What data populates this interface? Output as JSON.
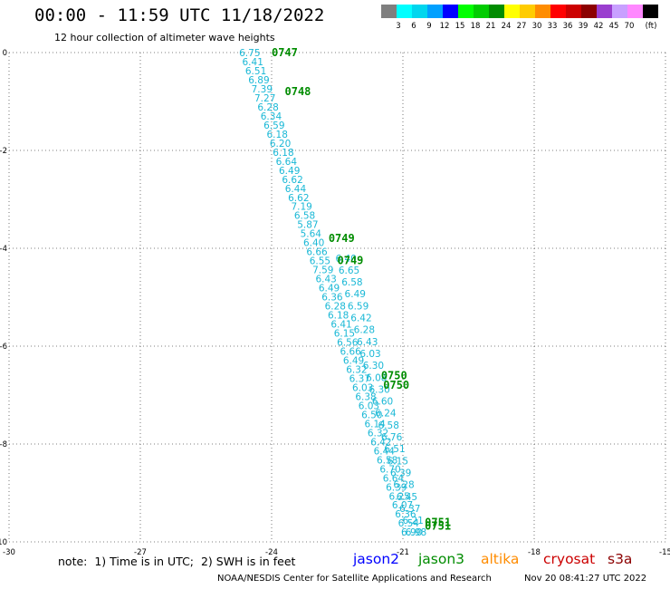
{
  "header": {
    "title": "00:00 - 11:59 UTC 11/18/2022",
    "subtitle": "12 hour collection of altimeter wave heights"
  },
  "colorbar": {
    "unit_label": "(ft)",
    "swatches": [
      {
        "label": "",
        "color": "#7f7f7f"
      },
      {
        "label": "3",
        "color": "#00ffff"
      },
      {
        "label": "6",
        "color": "#00d6ee"
      },
      {
        "label": "9",
        "color": "#00a0ff"
      },
      {
        "label": "12",
        "color": "#0000ff"
      },
      {
        "label": "15",
        "color": "#00ff00"
      },
      {
        "label": "18",
        "color": "#00cc00"
      },
      {
        "label": "21",
        "color": "#008c00"
      },
      {
        "label": "24",
        "color": "#ffff00"
      },
      {
        "label": "27",
        "color": "#ffcc00"
      },
      {
        "label": "30",
        "color": "#ff8c00"
      },
      {
        "label": "33",
        "color": "#ff0000"
      },
      {
        "label": "36",
        "color": "#cc0000"
      },
      {
        "label": "39",
        "color": "#8c0000"
      },
      {
        "label": "42",
        "color": "#9a3ecf"
      },
      {
        "label": "45",
        "color": "#c8a0ff"
      },
      {
        "label": "70",
        "color": "#ff88ff"
      },
      {
        "label": "",
        "color": "#000000"
      }
    ]
  },
  "chart_data": {
    "type": "scatter",
    "title": "00:00 - 11:59 UTC 11/18/2022",
    "subtitle": "12 hour collection of altimeter wave heights",
    "xlim": [
      -30,
      -15
    ],
    "ylim": [
      -10,
      0
    ],
    "x_ticks": [
      "-30",
      "-27",
      "-24",
      "-21",
      "-18",
      "-15"
    ],
    "y_ticks": [
      "0",
      "-2",
      "-4",
      "-6",
      "-8",
      "-10"
    ],
    "grid": true,
    "point_color": "#1ab8d6",
    "time_color": "#008c00",
    "track_a": {
      "lon_start": -24.5,
      "lat_start": -0.0,
      "lon_end": -20.8,
      "lat_end": -9.8,
      "values": [
        "6.75",
        "6.41",
        "6.51",
        "6.89",
        "7.39",
        "7.27",
        "6.28",
        "6.34",
        "6.59",
        "6.18",
        "6.20",
        "6.18",
        "6.64",
        "6.49",
        "6.62",
        "6.44",
        "6.62",
        "7.19",
        "6.58",
        "5.87",
        "5.64",
        "6.40",
        "6.66",
        "6.55",
        "7.59",
        "6.43",
        "6.49",
        "6.36",
        "6.28",
        "6.18",
        "6.41",
        "6.15",
        "6.56",
        "6.66",
        "6.49",
        "6.32",
        "6.37",
        "6.03",
        "6.38",
        "6.03",
        "6.50",
        "6.14",
        "6.32",
        "6.42",
        "6.44",
        "6.58",
        "6.70",
        "6.64",
        "6.39",
        "6.25",
        "6.07",
        "6.36",
        "6.54",
        "6.90"
      ]
    },
    "track_b": {
      "lon_start": -22.3,
      "lat_start": -4.2,
      "lon_end": -20.7,
      "lat_end": -9.8,
      "values": [
        "6.40",
        "6.65",
        "6.58",
        "6.49",
        "6.59",
        "6.42",
        "6.28",
        "6.43",
        "6.03",
        "6.30",
        "6.08",
        "6.30",
        "6.60",
        "6.24",
        "6.58",
        "6.76",
        "6.51",
        "6.15",
        "6.39",
        "6.28",
        "6.45",
        "6.37",
        "6.21",
        "6.98"
      ]
    },
    "time_labels": [
      {
        "text": "0747",
        "lon": -24.0,
        "lat": 0.0
      },
      {
        "text": "0748",
        "lon": -23.7,
        "lat": -0.8
      },
      {
        "text": "0749",
        "lon": -22.7,
        "lat": -3.8
      },
      {
        "text": "0749",
        "lon": -22.5,
        "lat": -4.25
      },
      {
        "text": "0750",
        "lon": -21.5,
        "lat": -6.6
      },
      {
        "text": "0750",
        "lon": -21.45,
        "lat": -6.8
      },
      {
        "text": "0751",
        "lon": -20.5,
        "lat": -9.6
      },
      {
        "text": "0751",
        "lon": -20.5,
        "lat": -9.68
      }
    ]
  },
  "note": "note:  1) Time is in UTC;  2) SWH is in feet",
  "satellites": [
    {
      "name": "jason2",
      "color": "#0000ff"
    },
    {
      "name": "jason3",
      "color": "#008c00"
    },
    {
      "name": "altika",
      "color": "#ff8c00"
    },
    {
      "name": "cryosat",
      "color": "#cc0000"
    },
    {
      "name": "s3a",
      "color": "#8c0000"
    }
  ],
  "footer": {
    "credit": "NOAA/NESDIS Center for Satellite Applications and Research",
    "timestamp": "Nov 20 08:41:27 UTC 2022"
  }
}
